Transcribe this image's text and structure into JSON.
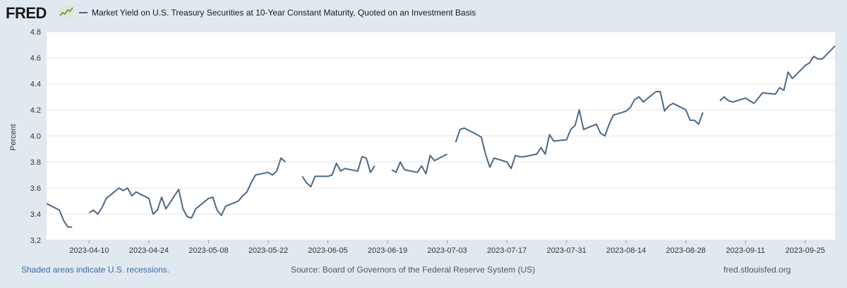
{
  "header": {
    "logo_text": "FRED",
    "logo_icon": "chart-sparkline-icon",
    "legend_label": "Market Yield on U.S. Treasury Securities at 10-Year Constant Maturity, Quoted on an Investment Basis",
    "series_color": "#4b6887"
  },
  "footer": {
    "recession_note": "Shaded areas indicate U.S. recessions.",
    "source": "Source: Board of Governors of the Federal Reserve System (US)",
    "site": "fred.stlouisfed.org"
  },
  "chart_data": {
    "type": "line",
    "title": "",
    "xlabel": "",
    "ylabel": "Percent",
    "ylim": [
      3.2,
      4.8
    ],
    "yticks": [
      "3.2",
      "3.4",
      "3.6",
      "3.8",
      "4.0",
      "4.2",
      "4.4",
      "4.6",
      "4.8"
    ],
    "xticks": [
      "2023-04-10",
      "2023-04-24",
      "2023-05-08",
      "2023-05-22",
      "2023-06-05",
      "2023-06-19",
      "2023-07-03",
      "2023-07-17",
      "2023-07-31",
      "2023-08-14",
      "2023-08-28",
      "2023-09-11",
      "2023-09-25"
    ],
    "grid": "horizontal",
    "series": [
      {
        "name": "Market Yield on U.S. Treasury Securities at 10-Year Constant Maturity, Quoted on an Investment Basis",
        "color": "#4b6887",
        "points": [
          [
            "2023-03-31",
            3.48
          ],
          [
            "2023-04-03",
            3.43
          ],
          [
            "2023-04-04",
            3.35
          ],
          [
            "2023-04-05",
            3.3
          ],
          [
            "2023-04-06",
            3.3
          ],
          [
            "2023-04-07",
            null
          ],
          [
            "2023-04-10",
            3.41
          ],
          [
            "2023-04-11",
            3.43
          ],
          [
            "2023-04-12",
            3.4
          ],
          [
            "2023-04-13",
            3.45
          ],
          [
            "2023-04-14",
            3.52
          ],
          [
            "2023-04-17",
            3.6
          ],
          [
            "2023-04-18",
            3.58
          ],
          [
            "2023-04-19",
            3.6
          ],
          [
            "2023-04-20",
            3.54
          ],
          [
            "2023-04-21",
            3.57
          ],
          [
            "2023-04-24",
            3.52
          ],
          [
            "2023-04-25",
            3.4
          ],
          [
            "2023-04-26",
            3.43
          ],
          [
            "2023-04-27",
            3.53
          ],
          [
            "2023-04-28",
            3.44
          ],
          [
            "2023-05-01",
            3.59
          ],
          [
            "2023-05-02",
            3.44
          ],
          [
            "2023-05-03",
            3.38
          ],
          [
            "2023-05-04",
            3.37
          ],
          [
            "2023-05-05",
            3.44
          ],
          [
            "2023-05-08",
            3.52
          ],
          [
            "2023-05-09",
            3.53
          ],
          [
            "2023-05-10",
            3.43
          ],
          [
            "2023-05-11",
            3.39
          ],
          [
            "2023-05-12",
            3.46
          ],
          [
            "2023-05-15",
            3.5
          ],
          [
            "2023-05-16",
            3.54
          ],
          [
            "2023-05-17",
            3.57
          ],
          [
            "2023-05-18",
            3.64
          ],
          [
            "2023-05-19",
            3.7
          ],
          [
            "2023-05-22",
            3.72
          ],
          [
            "2023-05-23",
            3.7
          ],
          [
            "2023-05-24",
            3.73
          ],
          [
            "2023-05-25",
            3.83
          ],
          [
            "2023-05-26",
            3.8
          ],
          [
            "2023-05-29",
            null
          ],
          [
            "2023-05-30",
            3.69
          ],
          [
            "2023-05-31",
            3.64
          ],
          [
            "2023-06-01",
            3.61
          ],
          [
            "2023-06-02",
            3.69
          ],
          [
            "2023-06-05",
            3.69
          ],
          [
            "2023-06-06",
            3.7
          ],
          [
            "2023-06-07",
            3.79
          ],
          [
            "2023-06-08",
            3.73
          ],
          [
            "2023-06-09",
            3.75
          ],
          [
            "2023-06-12",
            3.73
          ],
          [
            "2023-06-13",
            3.84
          ],
          [
            "2023-06-14",
            3.83
          ],
          [
            "2023-06-15",
            3.72
          ],
          [
            "2023-06-16",
            3.77
          ],
          [
            "2023-06-19",
            null
          ],
          [
            "2023-06-20",
            3.74
          ],
          [
            "2023-06-21",
            3.72
          ],
          [
            "2023-06-22",
            3.8
          ],
          [
            "2023-06-23",
            3.74
          ],
          [
            "2023-06-26",
            3.72
          ],
          [
            "2023-06-27",
            3.77
          ],
          [
            "2023-06-28",
            3.71
          ],
          [
            "2023-06-29",
            3.85
          ],
          [
            "2023-06-30",
            3.81
          ],
          [
            "2023-07-03",
            3.86
          ],
          [
            "2023-07-04",
            null
          ],
          [
            "2023-07-05",
            3.95
          ],
          [
            "2023-07-06",
            4.05
          ],
          [
            "2023-07-07",
            4.06
          ],
          [
            "2023-07-10",
            4.01
          ],
          [
            "2023-07-11",
            3.99
          ],
          [
            "2023-07-12",
            3.86
          ],
          [
            "2023-07-13",
            3.76
          ],
          [
            "2023-07-14",
            3.83
          ],
          [
            "2023-07-17",
            3.8
          ],
          [
            "2023-07-18",
            3.75
          ],
          [
            "2023-07-19",
            3.85
          ],
          [
            "2023-07-20",
            3.84
          ],
          [
            "2023-07-21",
            3.84
          ],
          [
            "2023-07-24",
            3.86
          ],
          [
            "2023-07-25",
            3.91
          ],
          [
            "2023-07-26",
            3.86
          ],
          [
            "2023-07-27",
            4.01
          ],
          [
            "2023-07-28",
            3.96
          ],
          [
            "2023-07-31",
            3.97
          ],
          [
            "2023-08-01",
            4.05
          ],
          [
            "2023-08-02",
            4.08
          ],
          [
            "2023-08-03",
            4.2
          ],
          [
            "2023-08-04",
            4.05
          ],
          [
            "2023-08-07",
            4.09
          ],
          [
            "2023-08-08",
            4.02
          ],
          [
            "2023-08-09",
            4.0
          ],
          [
            "2023-08-10",
            4.09
          ],
          [
            "2023-08-11",
            4.16
          ],
          [
            "2023-08-14",
            4.19
          ],
          [
            "2023-08-15",
            4.22
          ],
          [
            "2023-08-16",
            4.28
          ],
          [
            "2023-08-17",
            4.3
          ],
          [
            "2023-08-18",
            4.26
          ],
          [
            "2023-08-21",
            4.34
          ],
          [
            "2023-08-22",
            4.34
          ],
          [
            "2023-08-23",
            4.19
          ],
          [
            "2023-08-24",
            4.23
          ],
          [
            "2023-08-25",
            4.25
          ],
          [
            "2023-08-28",
            4.2
          ],
          [
            "2023-08-29",
            4.12
          ],
          [
            "2023-08-30",
            4.12
          ],
          [
            "2023-08-31",
            4.09
          ],
          [
            "2023-09-01",
            4.18
          ],
          [
            "2023-09-04",
            null
          ],
          [
            "2023-09-05",
            4.27
          ],
          [
            "2023-09-06",
            4.3
          ],
          [
            "2023-09-07",
            4.27
          ],
          [
            "2023-09-08",
            4.26
          ],
          [
            "2023-09-11",
            4.29
          ],
          [
            "2023-09-12",
            4.27
          ],
          [
            "2023-09-13",
            4.25
          ],
          [
            "2023-09-14",
            4.29
          ],
          [
            "2023-09-15",
            4.33
          ],
          [
            "2023-09-18",
            4.32
          ],
          [
            "2023-09-19",
            4.37
          ],
          [
            "2023-09-20",
            4.35
          ],
          [
            "2023-09-21",
            4.49
          ],
          [
            "2023-09-22",
            4.44
          ],
          [
            "2023-09-25",
            4.54
          ],
          [
            "2023-09-26",
            4.56
          ],
          [
            "2023-09-27",
            4.61
          ],
          [
            "2023-09-28",
            4.59
          ],
          [
            "2023-09-29",
            4.59
          ],
          [
            "2023-10-02",
            4.69
          ]
        ]
      }
    ]
  }
}
